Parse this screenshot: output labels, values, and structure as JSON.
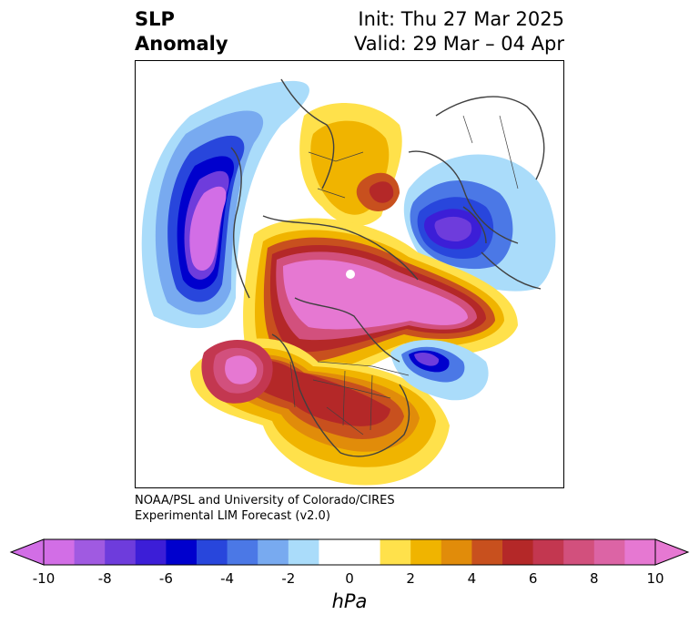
{
  "header": {
    "variable_line1": "SLP",
    "variable_line2": "Anomaly",
    "init_text": "Init: Thu 27 Mar 2025",
    "valid_text": "Valid: 29 Mar – 04 Apr"
  },
  "credit": {
    "line1": "NOAA/PSL and University of Colorado/CIRES",
    "line2": "Experimental LIM Forecast (v2.0)"
  },
  "colorbar": {
    "unit": "hPa",
    "tick_labels": [
      "-10",
      "-8",
      "-6",
      "-4",
      "-2",
      "0",
      "2",
      "4",
      "6",
      "8",
      "10"
    ],
    "colors": [
      "#d26ee6",
      "#a05ae1",
      "#6e3cdc",
      "#3c1ed7",
      "#0000cd",
      "#2846dc",
      "#4b78e6",
      "#78aaf0",
      "#aadcfa",
      "#ffffff",
      "#ffffff",
      "#ffe14b",
      "#f0b400",
      "#e18c0a",
      "#c8501e",
      "#b42828",
      "#c33750",
      "#d2507d",
      "#dc64a5",
      "#e678d2"
    ],
    "extend_low_color": "#d26ee6",
    "extend_high_color": "#e678d2"
  }
}
